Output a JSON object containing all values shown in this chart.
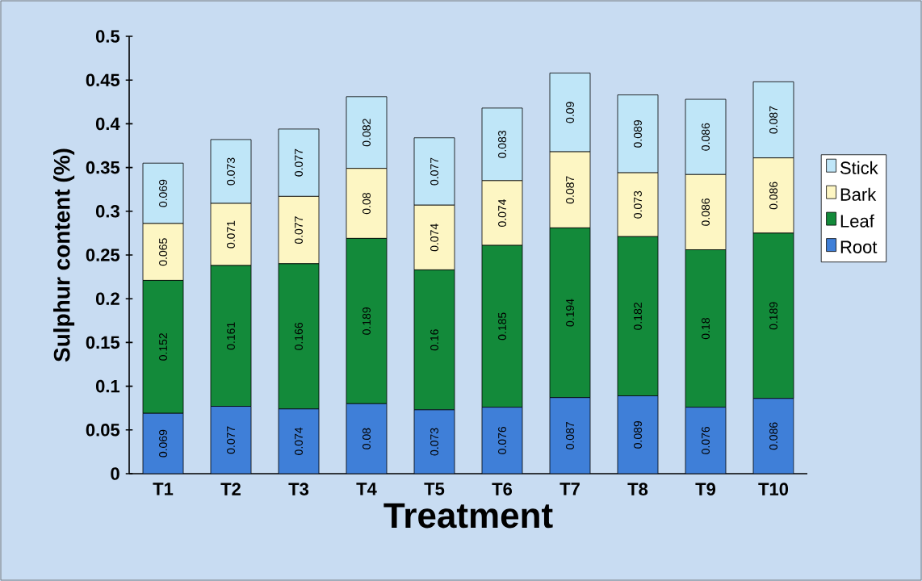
{
  "chart_data": {
    "type": "bar",
    "stacked": true,
    "xlabel": "Treatment",
    "ylabel": "Sulphur content (%)",
    "categories": [
      "T1",
      "T2",
      "T3",
      "T4",
      "T5",
      "T6",
      "T7",
      "T8",
      "T9",
      "T10"
    ],
    "series": [
      {
        "name": "Root",
        "color": "#3f7fd8",
        "values": [
          0.069,
          0.077,
          0.074,
          0.08,
          0.073,
          0.076,
          0.087,
          0.089,
          0.076,
          0.086
        ]
      },
      {
        "name": "Leaf",
        "color": "#138a3a",
        "values": [
          0.152,
          0.161,
          0.166,
          0.189,
          0.16,
          0.185,
          0.194,
          0.182,
          0.18,
          0.189
        ]
      },
      {
        "name": "Bark",
        "color": "#fdf6c3",
        "values": [
          0.065,
          0.071,
          0.077,
          0.08,
          0.074,
          0.074,
          0.087,
          0.073,
          0.086,
          0.086
        ]
      },
      {
        "name": "Stick",
        "color": "#bfe6f8",
        "values": [
          0.069,
          0.073,
          0.077,
          0.082,
          0.077,
          0.083,
          0.09,
          0.089,
          0.086,
          0.087
        ]
      }
    ],
    "ylim": [
      0,
      0.5
    ],
    "yticks": [
      0,
      0.05,
      0.1,
      0.15,
      0.2,
      0.25,
      0.3,
      0.35,
      0.4,
      0.45,
      0.5
    ],
    "data_labels": true,
    "legend": "right",
    "grid": false
  }
}
